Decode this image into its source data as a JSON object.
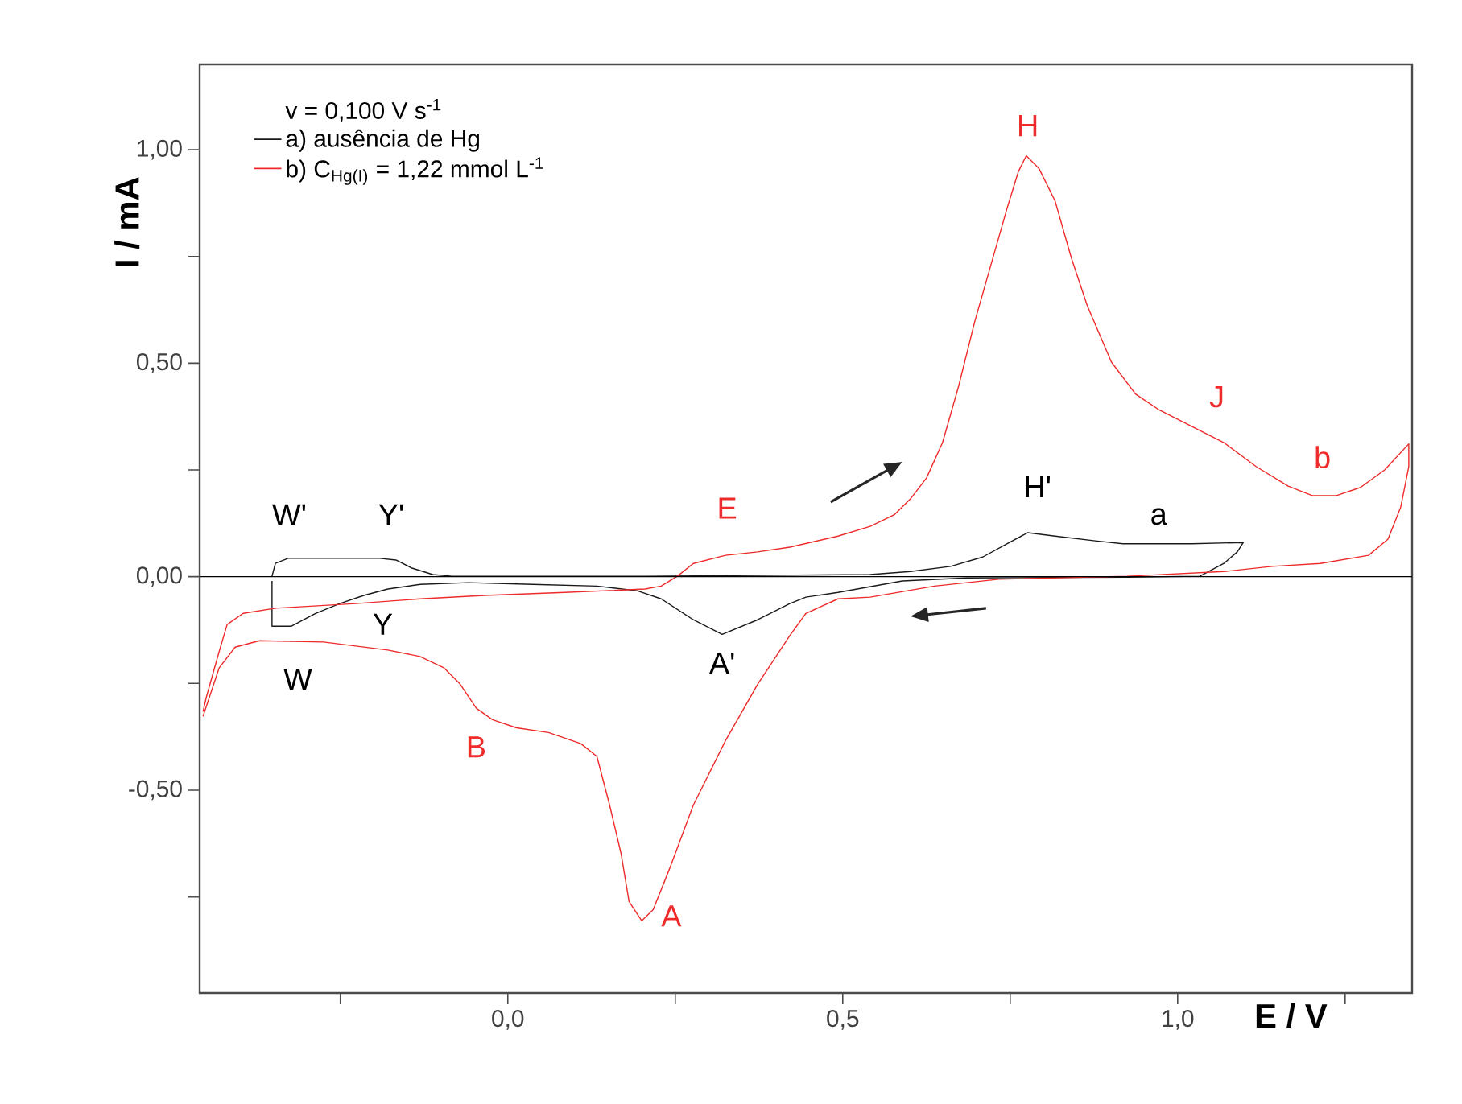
{
  "chart_data": {
    "type": "line",
    "xlabel": "E / V",
    "ylabel": "I / mA",
    "legend_title": "v = 0,100 V s$^{-1}$",
    "legend": "top left",
    "marker": "none",
    "line_style": "solid",
    "xlim": [
      -0.46,
      1.35
    ],
    "ylim": [
      -0.975,
      1.2
    ],
    "xticks": [
      {
        "value": -0.25,
        "label": null
      },
      {
        "value": 0,
        "label": "0,0"
      },
      {
        "value": 0.25,
        "label": null
      },
      {
        "value": 0.5,
        "label": "0,5"
      },
      {
        "value": 0.75,
        "label": null
      },
      {
        "value": 1.0,
        "label": "1,0"
      },
      {
        "value": 1.25,
        "label": null
      }
    ],
    "yticks": [
      {
        "value": -0.75,
        "label": null
      },
      {
        "value": -0.5,
        "label": "-0,50"
      },
      {
        "value": -0.25,
        "label": null
      },
      {
        "value": 0,
        "label": "0,00"
      },
      {
        "value": 0.25,
        "label": null
      },
      {
        "value": 0.5,
        "label": "0,50"
      },
      {
        "value": 0.75,
        "label": null
      },
      {
        "value": 1.0,
        "label": "1,00"
      }
    ],
    "ref_lines": [
      {
        "axis": "y",
        "value": 0,
        "color": "#000000"
      }
    ],
    "series": [
      {
        "name": "a) ausência de Hg",
        "color": "#1a1a1a",
        "x": [
          -0.352,
          -0.347,
          -0.328,
          -0.191,
          -0.167,
          -0.143,
          -0.112,
          -0.083,
          0.205,
          0.541,
          0.601,
          0.661,
          0.709,
          0.745,
          0.776,
          0.817,
          0.877,
          0.918,
          1.021,
          1.098,
          1.089,
          1.069,
          1.033,
          0.925,
          0.685,
          0.589,
          0.493,
          0.445,
          0.421,
          0.373,
          0.32,
          0.277,
          0.229,
          0.193,
          0.133,
          0.037,
          -0.059,
          -0.131,
          -0.179,
          -0.215,
          -0.251,
          -0.287,
          -0.323,
          -0.352,
          -0.352
        ],
        "values": [
          0.001,
          0.031,
          0.043,
          0.043,
          0.039,
          0.02,
          0.005,
          0.001,
          0.001,
          0.005,
          0.012,
          0.024,
          0.046,
          0.077,
          0.103,
          0.095,
          0.084,
          0.077,
          0.077,
          0.08,
          0.058,
          0.031,
          0.001,
          -0.001,
          -0.003,
          -0.01,
          -0.037,
          -0.048,
          -0.063,
          -0.101,
          -0.135,
          -0.101,
          -0.052,
          -0.033,
          -0.022,
          -0.018,
          -0.014,
          -0.018,
          -0.029,
          -0.044,
          -0.063,
          -0.086,
          -0.116,
          -0.116,
          -0.01
        ]
      },
      {
        "name": "b) C$_{Hg(I)}$ = 1,22 mmol L$^{-1}$",
        "color": "#ee2a2a",
        "x": [
          -0.455,
          -0.45,
          -0.431,
          -0.419,
          -0.395,
          -0.347,
          -0.227,
          -0.131,
          -0.035,
          0.085,
          0.205,
          0.229,
          0.253,
          0.277,
          0.325,
          0.373,
          0.421,
          0.493,
          0.541,
          0.577,
          0.601,
          0.625,
          0.649,
          0.673,
          0.697,
          0.721,
          0.745,
          0.762,
          0.774,
          0.793,
          0.817,
          0.841,
          0.865,
          0.901,
          0.937,
          0.973,
          1.021,
          1.069,
          1.117,
          1.165,
          1.201,
          1.237,
          1.273,
          1.309,
          1.345,
          1.345,
          1.333,
          1.314,
          1.285,
          1.213,
          1.141,
          1.069,
          0.925,
          0.733,
          0.637,
          0.541,
          0.493,
          0.445,
          0.421,
          0.373,
          0.325,
          0.277,
          0.241,
          0.217,
          0.2,
          0.181,
          0.169,
          0.152,
          0.133,
          0.109,
          0.061,
          0.013,
          -0.023,
          -0.047,
          -0.071,
          -0.095,
          -0.131,
          -0.179,
          -0.275,
          -0.371,
          -0.407,
          -0.431,
          -0.455
        ],
        "values": [
          -0.316,
          -0.282,
          -0.176,
          -0.112,
          -0.086,
          -0.074,
          -0.063,
          -0.052,
          -0.044,
          -0.037,
          -0.029,
          -0.022,
          0.001,
          0.031,
          0.05,
          0.058,
          0.069,
          0.095,
          0.118,
          0.145,
          0.182,
          0.231,
          0.314,
          0.446,
          0.597,
          0.729,
          0.861,
          0.948,
          0.986,
          0.956,
          0.88,
          0.748,
          0.635,
          0.503,
          0.428,
          0.39,
          0.352,
          0.314,
          0.258,
          0.212,
          0.19,
          0.19,
          0.209,
          0.25,
          0.311,
          0.258,
          0.163,
          0.088,
          0.05,
          0.031,
          0.024,
          0.012,
          0.001,
          -0.006,
          -0.022,
          -0.048,
          -0.052,
          -0.086,
          -0.138,
          -0.252,
          -0.384,
          -0.535,
          -0.686,
          -0.78,
          -0.806,
          -0.761,
          -0.648,
          -0.535,
          -0.421,
          -0.391,
          -0.365,
          -0.354,
          -0.335,
          -0.308,
          -0.252,
          -0.214,
          -0.187,
          -0.172,
          -0.153,
          -0.15,
          -0.165,
          -0.214,
          -0.327
        ]
      }
    ],
    "annotations": [
      "W'",
      "Y'",
      "W",
      "Y",
      "E",
      "B",
      "A",
      "A'",
      "H",
      "H'",
      "J",
      "a",
      "b"
    ]
  }
}
